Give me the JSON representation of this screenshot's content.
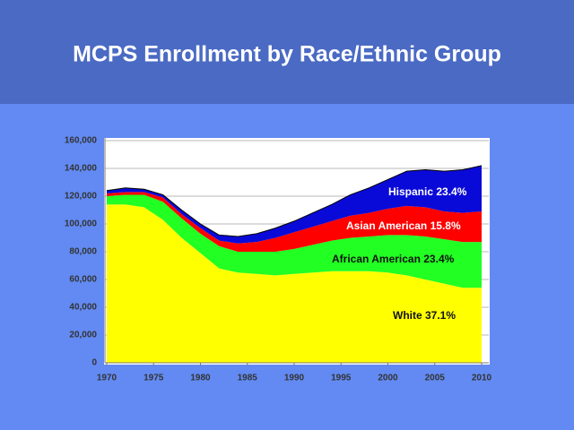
{
  "chart_data": {
    "type": "stacked-area",
    "title": "MCPS Enrollment by Race/Ethnic Group",
    "x": [
      1970,
      1972,
      1974,
      1976,
      1978,
      1980,
      1982,
      1984,
      1986,
      1988,
      1990,
      1992,
      1994,
      1996,
      1998,
      2000,
      2002,
      2004,
      2006,
      2008,
      2010
    ],
    "xlim": [
      1970,
      2010
    ],
    "xticks": [
      1970,
      1975,
      1980,
      1985,
      1990,
      1995,
      2000,
      2005,
      2010
    ],
    "ylim": [
      0,
      160000
    ],
    "yticks": [
      0,
      {
        "value": 20000,
        "label": "20,000"
      },
      {
        "value": 40000,
        "label": "40,000"
      },
      {
        "value": 60000,
        "label": "60,000"
      },
      {
        "value": 80000,
        "label": "80,000"
      },
      {
        "value": 100000,
        "label": "100,000"
      },
      {
        "value": 120000,
        "label": "120,000"
      },
      {
        "value": 140000,
        "label": "140,000"
      },
      {
        "value": 160000,
        "label": "160,000"
      }
    ],
    "grid": true,
    "series": [
      {
        "name": "White 37.1%",
        "color": "#ffff00",
        "values": [
          114000,
          114000,
          112000,
          103000,
          90000,
          79000,
          68000,
          65000,
          64000,
          63000,
          64000,
          65000,
          66000,
          66000,
          66000,
          65000,
          63000,
          60000,
          57000,
          54000,
          54000
        ]
      },
      {
        "name": "African American 23.4%",
        "color": "#22ff22",
        "values": [
          6000,
          7000,
          9000,
          13000,
          14000,
          14000,
          16000,
          15000,
          16000,
          17000,
          18000,
          20000,
          22000,
          24000,
          25000,
          27000,
          29000,
          31000,
          32000,
          33000,
          33000
        ]
      },
      {
        "name": "Asian American 15.8%",
        "color": "#ff0000",
        "values": [
          2000,
          2000,
          2000,
          3000,
          3000,
          4000,
          4000,
          6000,
          7000,
          10000,
          12000,
          13000,
          14000,
          16000,
          17000,
          19000,
          21000,
          21000,
          20000,
          21000,
          22000
        ]
      },
      {
        "name": "Hispanic 23.4%",
        "color": "#0a0ad8",
        "values": [
          2000,
          3000,
          2000,
          2000,
          3000,
          3000,
          4000,
          5000,
          6000,
          7000,
          8000,
          10000,
          12000,
          15000,
          18000,
          21000,
          25000,
          27000,
          29000,
          31000,
          33000
        ]
      }
    ]
  }
}
